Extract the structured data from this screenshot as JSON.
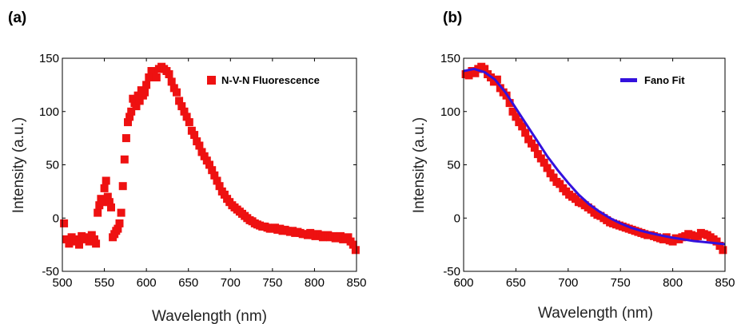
{
  "chart_data": [
    {
      "type": "scatter",
      "panel_label": "(a)",
      "xlabel": "Wavelength (nm)",
      "ylabel": "Intensity (a.u.)",
      "xlim": [
        500,
        850
      ],
      "ylim": [
        -50,
        150
      ],
      "xticks": [
        500,
        550,
        600,
        650,
        700,
        750,
        800,
        850
      ],
      "yticks": [
        -50,
        0,
        50,
        100,
        150
      ],
      "grid": false,
      "legend": "top-right",
      "series_color": "#ee1111",
      "series": [
        {
          "name": "N-V-N Fluorescence",
          "marker": "square",
          "x": [
            502,
            505,
            508,
            511,
            514,
            517,
            520,
            523,
            526,
            529,
            532,
            535,
            538,
            540,
            542,
            544,
            546,
            548,
            550,
            552,
            554,
            556,
            558,
            560,
            562,
            564,
            566,
            568,
            570,
            572,
            574,
            576,
            578,
            580,
            582,
            584,
            586,
            588,
            590,
            592,
            594,
            596,
            598,
            600,
            603,
            606,
            609,
            612,
            615,
            618,
            621,
            624,
            627,
            630,
            633,
            636,
            639,
            642,
            645,
            648,
            651,
            654,
            657,
            660,
            663,
            666,
            669,
            672,
            675,
            678,
            681,
            684,
            687,
            690,
            693,
            696,
            699,
            702,
            705,
            708,
            711,
            714,
            717,
            720,
            723,
            726,
            729,
            732,
            735,
            738,
            741,
            744,
            747,
            750,
            753,
            756,
            759,
            762,
            765,
            768,
            771,
            774,
            777,
            780,
            783,
            786,
            789,
            792,
            795,
            798,
            801,
            804,
            807,
            810,
            813,
            816,
            819,
            822,
            825,
            828,
            831,
            834,
            837,
            840,
            843,
            846,
            849
          ],
          "y": [
            -5,
            -20,
            -24,
            -18,
            -22,
            -20,
            -25,
            -17,
            -20,
            -18,
            -22,
            -16,
            -20,
            -24,
            5,
            12,
            18,
            15,
            28,
            35,
            20,
            15,
            10,
            -18,
            -15,
            -12,
            -10,
            -5,
            5,
            30,
            55,
            75,
            90,
            95,
            100,
            112,
            108,
            105,
            115,
            110,
            120,
            115,
            118,
            125,
            132,
            138,
            135,
            132,
            140,
            142,
            140,
            138,
            135,
            128,
            122,
            118,
            110,
            105,
            100,
            95,
            90,
            82,
            78,
            72,
            68,
            62,
            58,
            54,
            50,
            45,
            40,
            35,
            30,
            25,
            22,
            18,
            15,
            12,
            10,
            8,
            6,
            4,
            2,
            0,
            -2,
            -3,
            -5,
            -6,
            -7,
            -8,
            -8,
            -9,
            -10,
            -10,
            -9,
            -11,
            -10,
            -12,
            -11,
            -12,
            -13,
            -12,
            -14,
            -13,
            -14,
            -15,
            -15,
            -16,
            -14,
            -16,
            -17,
            -15,
            -16,
            -18,
            -17,
            -16,
            -18,
            -17,
            -19,
            -18,
            -17,
            -20,
            -19,
            -18,
            -22,
            -25,
            -30
          ]
        }
      ]
    },
    {
      "type": "scatter",
      "panel_label": "(b)",
      "xlabel": "Wavelength (nm)",
      "ylabel": "Intensity (a.u.)",
      "xlim": [
        600,
        850
      ],
      "ylim": [
        -50,
        150
      ],
      "xticks": [
        600,
        650,
        700,
        750,
        800,
        850
      ],
      "yticks": [
        -50,
        0,
        50,
        100,
        150
      ],
      "grid": false,
      "legend": "top-right",
      "series_color": "#ee1111",
      "fit_color": "#3311dd",
      "series": [
        {
          "name": "",
          "marker": "square",
          "x": [
            602,
            605,
            608,
            611,
            614,
            617,
            620,
            623,
            626,
            629,
            632,
            635,
            638,
            641,
            644,
            647,
            650,
            653,
            656,
            659,
            662,
            665,
            668,
            671,
            674,
            677,
            680,
            683,
            686,
            689,
            692,
            695,
            698,
            701,
            704,
            707,
            710,
            713,
            716,
            719,
            722,
            725,
            728,
            731,
            734,
            737,
            740,
            743,
            746,
            749,
            752,
            755,
            758,
            761,
            764,
            767,
            770,
            773,
            776,
            779,
            782,
            785,
            788,
            791,
            794,
            797,
            800,
            803,
            806,
            809,
            812,
            815,
            818,
            821,
            824,
            827,
            830,
            833,
            836,
            839,
            842,
            845,
            848
          ],
          "y": [
            135,
            134,
            138,
            136,
            140,
            142,
            140,
            135,
            132,
            128,
            130,
            122,
            118,
            115,
            108,
            100,
            95,
            90,
            86,
            80,
            74,
            70,
            66,
            60,
            56,
            52,
            47,
            42,
            38,
            34,
            32,
            28,
            25,
            22,
            20,
            18,
            15,
            14,
            12,
            10,
            8,
            5,
            3,
            2,
            0,
            -2,
            -4,
            -5,
            -6,
            -7,
            -8,
            -9,
            -10,
            -11,
            -12,
            -13,
            -14,
            -15,
            -16,
            -16,
            -17,
            -18,
            -19,
            -20,
            -18,
            -21,
            -22,
            -19,
            -20,
            -18,
            -17,
            -15,
            -16,
            -18,
            -17,
            -14,
            -15,
            -16,
            -18,
            -20,
            -22,
            -26,
            -30
          ]
        },
        {
          "name": "Fano Fit",
          "kind": "line",
          "x": [
            600,
            610,
            620,
            630,
            640,
            650,
            660,
            670,
            680,
            690,
            700,
            710,
            720,
            730,
            740,
            750,
            760,
            770,
            780,
            790,
            800,
            810,
            820,
            830,
            840,
            850
          ],
          "y": [
            138,
            140,
            137,
            130,
            118,
            103,
            88,
            73,
            58,
            45,
            33,
            22,
            13,
            6,
            0,
            -5,
            -9,
            -12,
            -14.5,
            -16.5,
            -18.5,
            -20,
            -21.5,
            -22.5,
            -23.5,
            -24.5
          ]
        }
      ]
    }
  ]
}
